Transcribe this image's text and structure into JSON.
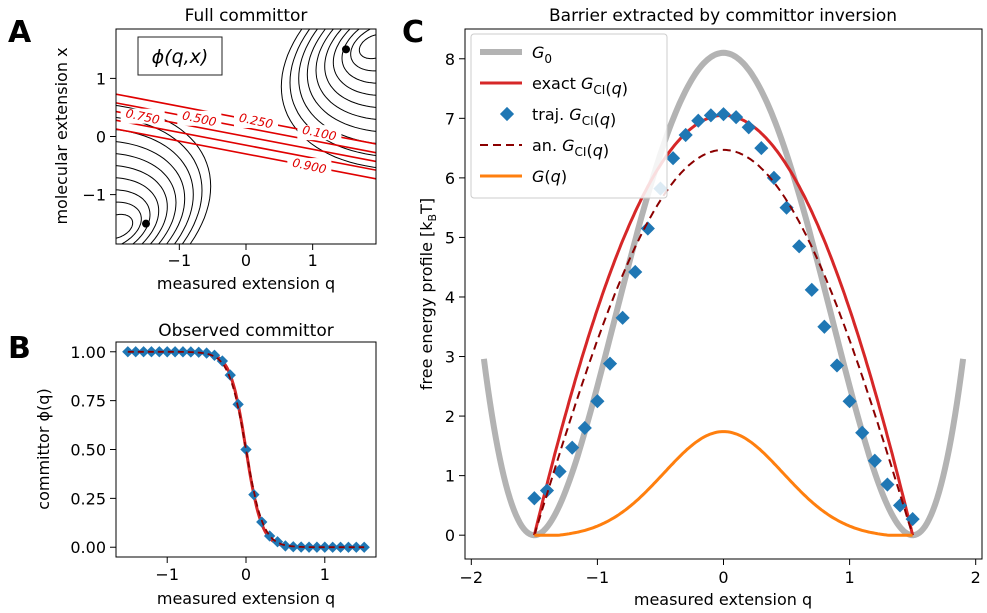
{
  "chart_data": [
    {
      "panel": "A",
      "type": "contour",
      "title": "Full committor",
      "xlabel": "measured extension q",
      "ylabel": "molecular extension x",
      "xlim": [
        -1.95,
        1.95
      ],
      "ylim": [
        -1.85,
        1.85
      ],
      "xticks": [
        "−1",
        "0",
        "1"
      ],
      "yticks": [
        "1",
        "0",
        "−1"
      ],
      "legend_label": "ϕ(q,x)",
      "committor_levels": [
        "0.100",
        "0.250",
        "0.500",
        "0.750",
        "0.900"
      ],
      "minima": [
        [
          -1.5,
          -1.5
        ],
        [
          1.5,
          1.5
        ]
      ],
      "colors": {
        "energy_contours": "#000000",
        "committor_contours": "#e00000"
      }
    },
    {
      "panel": "B",
      "type": "line",
      "title": "Observed committor",
      "xlabel": "measured extension q",
      "ylabel": "committor ϕ(q)",
      "xlim": [
        -1.65,
        1.65
      ],
      "ylim": [
        -0.05,
        1.05
      ],
      "xticks": [
        "−1",
        "0",
        "1"
      ],
      "yticks": [
        "1.00",
        "0.75",
        "0.50",
        "0.25",
        "0.00"
      ],
      "series": [
        {
          "name": "exact",
          "style": "solid",
          "color": "#d62728"
        },
        {
          "name": "traj.",
          "style": "diamond",
          "color": "#1f77b4"
        },
        {
          "name": "an.",
          "style": "dashed",
          "color": "#8b0000"
        }
      ]
    },
    {
      "panel": "C",
      "type": "line",
      "title": "Barrier extracted by committor inversion",
      "xlabel": "measured extension q",
      "ylabel": "free energy profile [k",
      "ylabel_sub": "B",
      "ylabel_end": "T]",
      "xlim": [
        -2.05,
        2.05
      ],
      "ylim": [
        -0.4,
        8.5
      ],
      "xticks": [
        "−2",
        "−1",
        "0",
        "1",
        "2"
      ],
      "yticks": [
        "8",
        "7",
        "6",
        "5",
        "4",
        "3",
        "2",
        "1",
        "0"
      ],
      "series": [
        {
          "name": "G0",
          "color": "#b3b3b3",
          "formula": "8.1 (1 - (q/1.5)^2)^2"
        },
        {
          "name": "exact G_CI(q)",
          "color": "#d62728"
        },
        {
          "name": "traj. G_CI(q)",
          "color": "#1f77b4",
          "x": [
            -1.5,
            -1.4,
            -1.3,
            -1.2,
            -1.1,
            -1.0,
            -0.9,
            -0.8,
            -0.7,
            -0.6,
            -0.5,
            -0.4,
            -0.3,
            -0.2,
            -0.1,
            0.0,
            0.1,
            0.2,
            0.3,
            0.4,
            0.5,
            0.6,
            0.7,
            0.8,
            0.9,
            1.0,
            1.1,
            1.2,
            1.3,
            1.4,
            1.5
          ],
          "y": [
            0.62,
            0.75,
            1.07,
            1.47,
            1.8,
            2.25,
            2.88,
            3.65,
            4.42,
            5.15,
            5.82,
            6.33,
            6.72,
            6.96,
            7.05,
            7.07,
            7.02,
            6.85,
            6.5,
            6.0,
            5.5,
            4.85,
            4.12,
            3.5,
            2.85,
            2.25,
            1.72,
            1.25,
            0.85,
            0.5,
            0.27
          ]
        },
        {
          "name": "an. G_CI(q)",
          "color": "#8b0000",
          "style": "dashed"
        },
        {
          "name": "G(q)",
          "color": "#ff7f0e"
        }
      ],
      "legend": {
        "placement": "top-left",
        "items": [
          {
            "main": "G",
            "sub": "0",
            "after": ""
          },
          {
            "main": "exact G",
            "sub": "CI",
            "after": "(q)"
          },
          {
            "main": "traj. G",
            "sub": "CI",
            "after": "(q)"
          },
          {
            "main": "an. G",
            "sub": "CI",
            "after": "(q)"
          },
          {
            "main": "G(q)",
            "sub": "",
            "after": ""
          }
        ]
      }
    }
  ],
  "panel_labels": [
    "A",
    "B",
    "C"
  ]
}
